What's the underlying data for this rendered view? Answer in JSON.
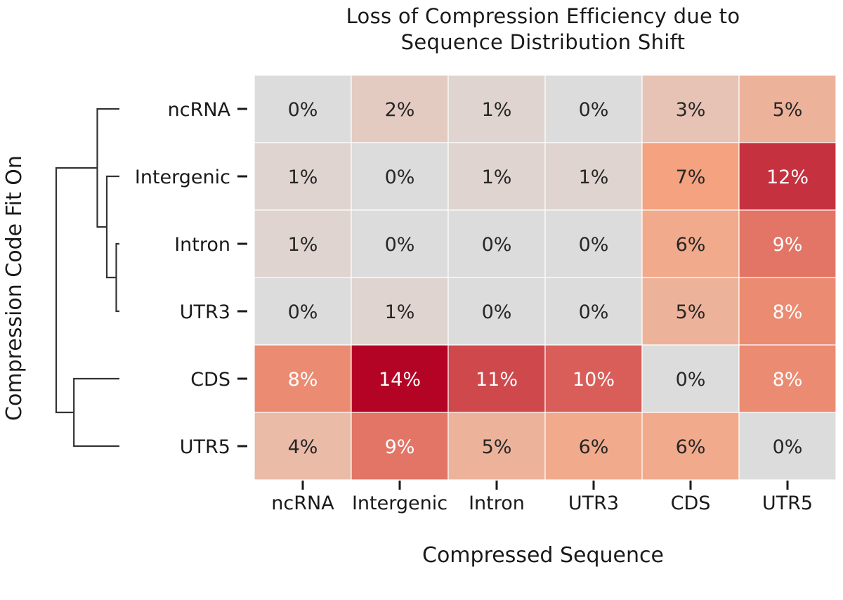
{
  "chart_data": {
    "type": "heatmap",
    "title_lines": [
      "Loss of Compression Efficiency due to",
      "Sequence  Distribution Shift"
    ],
    "xlabel": "Compressed Sequence",
    "ylabel": "Compression Code Fit On",
    "columns": [
      "ncRNA",
      "Intergenic",
      "Intron",
      "UTR3",
      "CDS",
      "UTR5"
    ],
    "rows": [
      "ncRNA",
      "Intergenic",
      "Intron",
      "UTR3",
      "CDS",
      "UTR5"
    ],
    "values": [
      [
        0,
        2,
        1,
        0,
        3,
        5
      ],
      [
        1,
        0,
        1,
        1,
        7,
        12
      ],
      [
        1,
        0,
        0,
        0,
        6,
        9
      ],
      [
        0,
        1,
        0,
        0,
        5,
        8
      ],
      [
        8,
        14,
        11,
        10,
        0,
        8
      ],
      [
        4,
        9,
        5,
        6,
        6,
        0
      ]
    ],
    "value_suffix": "%",
    "color_scale": {
      "min": 0,
      "max": 14,
      "low_color": "#dcdcdc",
      "mid_color": "#f4a27f",
      "high_color": "#b40426",
      "light_text_color": "#ffffff",
      "dark_text_color": "#262626",
      "light_text_threshold": 7.5
    },
    "dendrogram": {
      "order": [
        "ncRNA",
        "Intergenic",
        "Intron",
        "UTR3",
        "CDS",
        "UTR5"
      ],
      "merges": [
        {
          "left": "Intron",
          "right": "UTR3",
          "height": 0.05
        },
        {
          "left": "Intergenic",
          "right": "Intron+UTR3",
          "height": 0.2
        },
        {
          "left": "ncRNA",
          "right": "Intergenic+Intron+UTR3",
          "height": 0.35
        },
        {
          "left": "CDS",
          "right": "UTR5",
          "height": 0.72
        },
        {
          "left": "ncRNA+Intergenic+Intron+UTR3",
          "right": "CDS+UTR5",
          "height": 1.0
        }
      ]
    }
  }
}
